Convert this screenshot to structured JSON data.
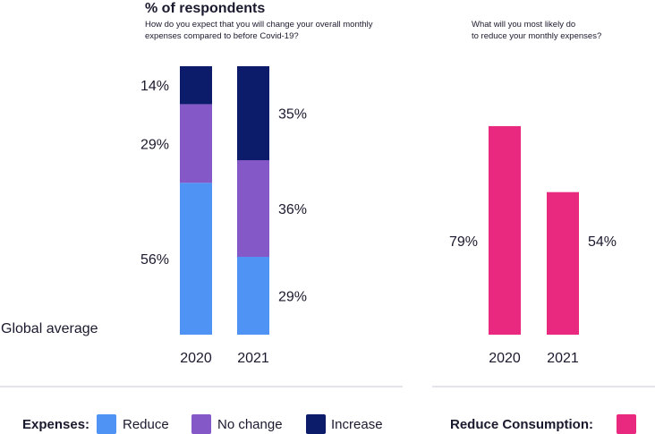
{
  "title": "% of respondents",
  "row_label": "Global average",
  "colors": {
    "reduce": "#4f93f4",
    "no_change": "#8458c6",
    "increase": "#0d1b6b",
    "reduce_consumption": "#e8297f",
    "divider": "#c9cbd9"
  },
  "legend": {
    "expenses_label": "Expenses:",
    "consumption_label": "Reduce Consumption:",
    "items": [
      {
        "name": "Reduce",
        "color": "#4f93f4"
      },
      {
        "name": "No change",
        "color": "#8458c6"
      },
      {
        "name": "Increase",
        "color": "#0d1b6b"
      }
    ]
  },
  "chart_data": [
    {
      "type": "bar",
      "stacked": true,
      "subtitle": "How do you expect that you will change your overall monthly expenses compared to before Covid-19?",
      "categories": [
        "2020",
        "2021"
      ],
      "series": [
        {
          "name": "Reduce",
          "values": [
            56,
            29
          ],
          "labels": [
            "56%",
            "29%"
          ]
        },
        {
          "name": "No change",
          "values": [
            29,
            36
          ],
          "labels": [
            "29%",
            "36%"
          ]
        },
        {
          "name": "Increase",
          "values": [
            14,
            35
          ],
          "labels": [
            "14%",
            "35%"
          ]
        }
      ],
      "ylim": [
        0,
        100
      ],
      "grid": false
    },
    {
      "type": "bar",
      "subtitle": "What will you most likely do to reduce your monthly expenses?",
      "categories": [
        "2020",
        "2021"
      ],
      "series": [
        {
          "name": "Reduce Consumption",
          "values": [
            79,
            54
          ],
          "labels": [
            "79%",
            "54%"
          ]
        }
      ],
      "ylim": [
        0,
        100
      ],
      "grid": false
    }
  ]
}
